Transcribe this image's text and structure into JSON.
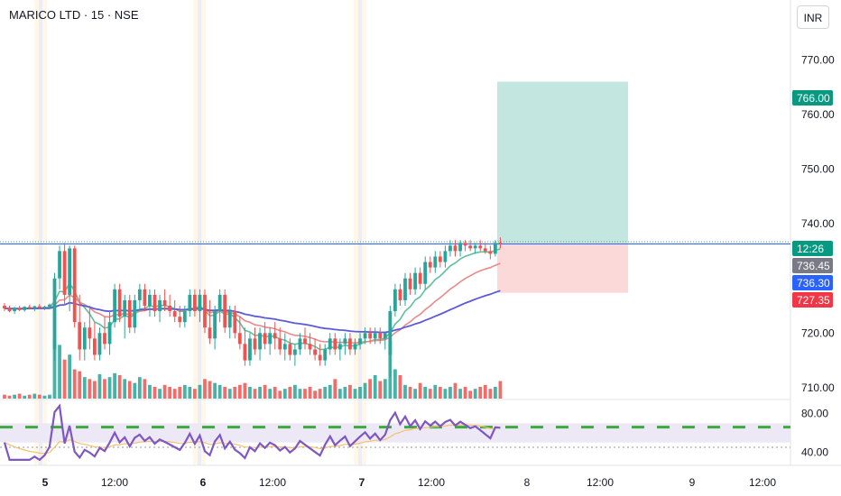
{
  "header": {
    "title": "MARICO LTD · 15 · NSE",
    "currency": "INR"
  },
  "colors": {
    "up": "#26a69a",
    "down": "#ef5350",
    "ema_fast": "#5fbf9f",
    "ema_mid": "#e98a8a",
    "ema_slow": "#5b5bd8",
    "rsi": "#7e57c2",
    "rsi_ma": "#f3c26b",
    "dash": "#3caa3c",
    "tp_zone": "#c3e6e0",
    "sl_zone": "#fbd9d9",
    "session": "#fff1d6"
  },
  "price_labels": [
    {
      "text": "766.00",
      "color": "#089981"
    },
    {
      "text": "12:26",
      "color": "#089981"
    },
    {
      "text": "736.45",
      "color": "#787b86"
    },
    {
      "text": "736.30",
      "color": "#2962ff"
    },
    {
      "text": "727.35",
      "color": "#f23645"
    }
  ],
  "chart_data": [
    {
      "type": "candlestick",
      "title": "MARICO LTD · 15 · NSE",
      "price_ticks": [
        "770.00",
        "760.00",
        "750.00",
        "740.00",
        "720.00",
        "710.00"
      ],
      "ylim": [
        708,
        776
      ],
      "x_ticks": [
        "5",
        "12:00",
        "6",
        "12:00",
        "7",
        "12:00",
        "8",
        "12:00",
        "9",
        "12:00"
      ],
      "sessions": [
        "5",
        "6",
        "7"
      ],
      "current_price": 736.45,
      "horizontal_level": 736.3,
      "position": {
        "entry": 736.45,
        "target": 766.0,
        "stop": 727.35
      },
      "candles": [
        [
          725,
          725.5,
          724,
          724.5
        ],
        [
          724.5,
          725,
          723.8,
          724
        ],
        [
          724,
          724.8,
          723.5,
          724.6
        ],
        [
          724.6,
          725,
          724,
          724.2
        ],
        [
          724.2,
          724.9,
          723.9,
          724.8
        ],
        [
          724.8,
          725.2,
          724.3,
          724.5
        ],
        [
          724.5,
          725,
          724,
          724.9
        ],
        [
          724.9,
          725.3,
          724.4,
          724.6
        ],
        [
          724.6,
          725,
          724.2,
          724.8
        ],
        [
          724.8,
          725.4,
          724.5,
          725.2
        ],
        [
          717,
          731,
          715,
          730
        ],
        [
          730,
          736,
          728,
          735
        ],
        [
          735,
          736.5,
          725,
          727
        ],
        [
          727,
          736,
          724,
          735.5
        ],
        [
          735.5,
          736,
          721,
          722
        ],
        [
          722,
          727,
          715,
          717
        ],
        [
          717,
          722,
          715,
          721
        ],
        [
          721,
          725,
          717,
          719
        ],
        [
          719,
          722,
          715,
          716
        ],
        [
          716,
          721,
          715,
          720
        ],
        [
          720,
          723,
          717,
          718
        ],
        [
          718,
          724,
          716,
          722
        ],
        [
          722,
          729,
          721,
          728
        ],
        [
          728,
          729,
          722,
          723
        ],
        [
          723,
          727,
          719,
          726
        ],
        [
          726,
          727,
          720,
          721
        ],
        [
          721,
          727,
          720,
          726
        ],
        [
          726,
          729,
          724,
          728
        ],
        [
          728,
          729,
          724,
          725
        ],
        [
          725,
          728,
          723,
          727
        ],
        [
          727,
          728,
          723,
          724
        ],
        [
          724,
          727,
          722,
          726
        ],
        [
          726,
          728,
          724,
          725
        ],
        [
          725,
          727,
          723,
          724
        ],
        [
          724,
          726,
          722,
          723
        ],
        [
          723,
          725,
          721,
          722
        ],
        [
          722,
          725,
          721,
          724
        ],
        [
          724,
          728,
          723,
          727
        ],
        [
          727,
          728,
          723,
          724
        ],
        [
          724,
          728,
          722,
          727
        ],
        [
          727,
          728,
          720,
          721
        ],
        [
          721,
          726,
          718,
          719
        ],
        [
          719,
          725,
          717,
          724
        ],
        [
          724,
          728,
          722,
          727
        ],
        [
          727,
          728,
          720,
          721
        ],
        [
          721,
          725,
          719,
          724
        ],
        [
          724,
          725,
          719,
          720
        ],
        [
          720,
          723,
          717,
          718
        ],
        [
          718,
          721,
          714,
          715
        ],
        [
          715,
          720,
          714,
          719
        ],
        [
          719,
          721,
          716,
          717
        ],
        [
          717,
          721,
          715,
          720
        ],
        [
          720,
          722,
          717,
          718
        ],
        [
          718,
          721,
          716,
          720
        ],
        [
          720,
          722,
          717,
          719
        ],
        [
          719,
          721,
          716,
          717
        ],
        [
          717,
          720,
          715,
          718
        ],
        [
          718,
          719,
          715,
          716
        ],
        [
          716,
          718,
          714,
          717
        ],
        [
          717,
          720,
          716,
          719
        ],
        [
          719,
          721,
          717,
          718
        ],
        [
          718,
          720,
          716,
          717
        ],
        [
          717,
          719,
          715,
          716
        ],
        [
          716,
          718,
          714,
          715
        ],
        [
          715,
          718,
          714,
          717
        ],
        [
          717,
          720,
          716,
          719
        ],
        [
          719,
          720,
          716,
          717
        ],
        [
          717,
          719,
          715,
          718
        ],
        [
          718,
          720,
          716,
          719
        ],
        [
          719,
          720,
          716,
          717
        ],
        [
          717,
          719,
          716,
          718
        ],
        [
          718,
          720,
          717,
          719
        ],
        [
          719,
          721,
          718,
          720
        ],
        [
          720,
          721,
          718,
          719
        ],
        [
          719,
          721,
          718,
          720
        ],
        [
          720,
          721,
          718,
          719
        ],
        [
          719,
          720,
          717,
          720
        ],
        [
          716,
          725,
          712,
          724
        ],
        [
          724,
          729,
          723,
          728
        ],
        [
          728,
          729,
          725,
          726
        ],
        [
          726,
          731,
          725,
          730
        ],
        [
          730,
          731,
          727,
          728
        ],
        [
          728,
          732,
          727,
          731
        ],
        [
          731,
          732,
          728,
          729
        ],
        [
          729,
          734,
          728,
          733
        ],
        [
          733,
          734,
          731,
          732
        ],
        [
          732,
          735,
          731,
          734
        ],
        [
          734,
          735,
          732,
          733
        ],
        [
          733,
          736,
          732,
          735
        ],
        [
          735,
          737,
          734,
          736
        ],
        [
          736,
          737,
          734,
          735
        ],
        [
          735,
          737,
          734,
          736.5
        ],
        [
          736.5,
          737,
          735,
          736
        ],
        [
          736,
          737,
          735,
          735.5
        ],
        [
          735.5,
          736.5,
          734.5,
          736
        ],
        [
          736,
          737,
          735,
          735.5
        ],
        [
          735.5,
          736.5,
          734.5,
          735
        ],
        [
          735,
          736,
          733.5,
          734.5
        ],
        [
          734.5,
          737,
          734,
          736.5
        ],
        [
          736.5,
          737.5,
          735.5,
          736.45
        ]
      ],
      "volume": [
        4,
        3,
        4,
        5,
        3,
        4,
        5,
        4,
        3,
        4,
        60,
        55,
        40,
        45,
        30,
        28,
        22,
        20,
        18,
        25,
        20,
        22,
        26,
        24,
        20,
        18,
        16,
        22,
        20,
        14,
        12,
        10,
        14,
        12,
        10,
        12,
        14,
        12,
        10,
        14,
        20,
        18,
        16,
        14,
        12,
        10,
        12,
        14,
        16,
        12,
        10,
        12,
        14,
        10,
        12,
        8,
        10,
        12,
        14,
        10,
        10,
        12,
        8,
        10,
        12,
        14,
        20,
        10,
        12,
        14,
        10,
        12,
        16,
        20,
        24,
        18,
        20,
        60,
        30,
        24,
        14,
        12,
        10,
        16,
        12,
        10,
        14,
        12,
        10,
        12,
        16,
        10,
        12,
        8,
        10,
        12,
        14,
        10,
        12,
        18
      ],
      "rsi": {
        "levels": [
          "80.00",
          "40.00"
        ],
        "ylim": [
          30,
          90
        ],
        "band": [
          50,
          70
        ],
        "dashed_level": 66,
        "dotted_level": 45
      }
    }
  ]
}
